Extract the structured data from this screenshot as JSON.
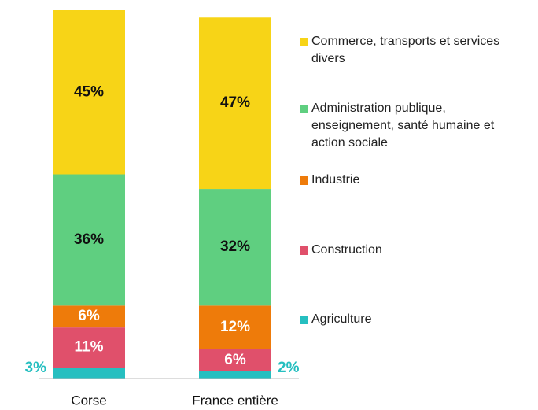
{
  "chart_data": {
    "type": "stacked_bar",
    "categories": [
      "Corse",
      "France entière"
    ],
    "series": [
      {
        "name": "Agriculture",
        "color": "#26bfc0",
        "values": [
          3,
          2
        ],
        "value_labels": [
          "3%",
          "2%"
        ]
      },
      {
        "name": "Construction",
        "color": "#e0506b",
        "values": [
          11,
          6
        ],
        "value_labels": [
          "11%",
          "6%"
        ]
      },
      {
        "name": "Industrie",
        "color": "#ee7b0a",
        "values": [
          6,
          12
        ],
        "value_labels": [
          "6%",
          "12%"
        ]
      },
      {
        "name": "Administration publique, enseignement, santé humaine et action sociale",
        "color": "#5fcf80",
        "values": [
          36,
          32
        ],
        "value_labels": [
          "36%",
          "32%"
        ]
      },
      {
        "name": "Commerce, transports et services divers",
        "color": "#f7d417",
        "values": [
          45,
          47
        ],
        "value_labels": [
          "45%",
          "47%"
        ]
      }
    ]
  }
}
